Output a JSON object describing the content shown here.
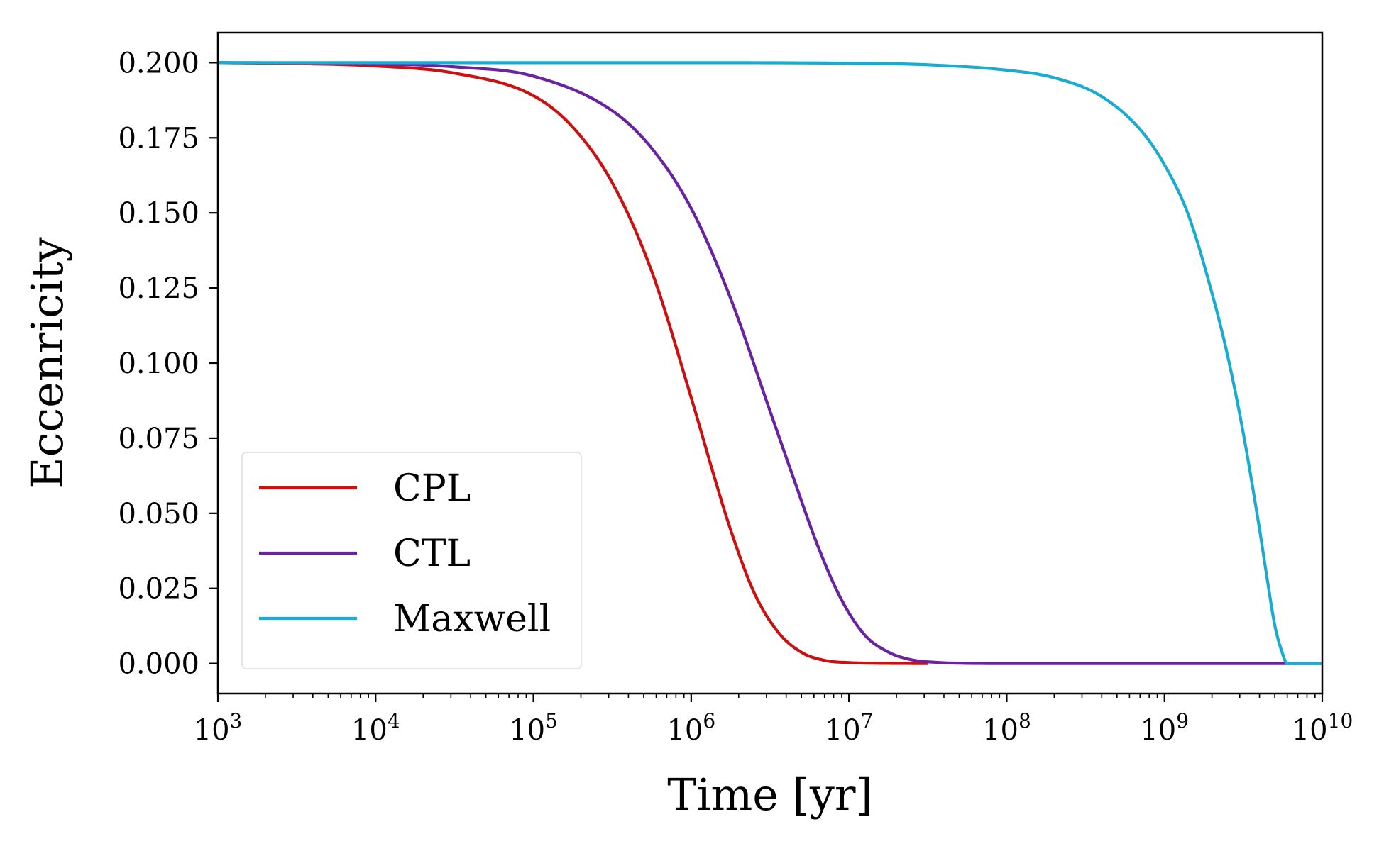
{
  "chart_data": {
    "type": "line",
    "title": "",
    "xlabel": "Time [yr]",
    "ylabel": "Eccenricity",
    "xscale": "log",
    "xlim": [
      1000,
      10000000000
    ],
    "ylim": [
      -0.01,
      0.21
    ],
    "x_ticks": [
      {
        "value": 1000,
        "base": "10",
        "exp": "3"
      },
      {
        "value": 10000,
        "base": "10",
        "exp": "4"
      },
      {
        "value": 100000,
        "base": "10",
        "exp": "5"
      },
      {
        "value": 1000000,
        "base": "10",
        "exp": "6"
      },
      {
        "value": 10000000,
        "base": "10",
        "exp": "7"
      },
      {
        "value": 100000000,
        "base": "10",
        "exp": "8"
      },
      {
        "value": 1000000000,
        "base": "10",
        "exp": "9"
      },
      {
        "value": 10000000000,
        "base": "10",
        "exp": "10"
      }
    ],
    "y_ticks": [
      {
        "value": 0.0,
        "label": "0.000"
      },
      {
        "value": 0.025,
        "label": "0.025"
      },
      {
        "value": 0.05,
        "label": "0.050"
      },
      {
        "value": 0.075,
        "label": "0.075"
      },
      {
        "value": 0.1,
        "label": "0.100"
      },
      {
        "value": 0.125,
        "label": "0.125"
      },
      {
        "value": 0.15,
        "label": "0.150"
      },
      {
        "value": 0.175,
        "label": "0.175"
      },
      {
        "value": 0.2,
        "label": "0.200"
      }
    ],
    "grid": false,
    "legend_position": "lower-left",
    "series": [
      {
        "name": "CPL",
        "color": "#cc1010",
        "x": [
          1000,
          3162,
          10000,
          31623,
          100000,
          177828,
          316228,
          562341,
          1000000,
          1412538,
          1778279,
          2511886,
          3548134,
          5011872,
          7079458,
          10000000,
          14125375,
          19952623,
          31622777
        ],
        "y": [
          0.2,
          0.1997,
          0.1989,
          0.1965,
          0.189,
          0.1785,
          0.16,
          0.1305,
          0.0885,
          0.0615,
          0.0445,
          0.0235,
          0.0105,
          0.0037,
          0.001,
          0.0003,
          0.0001,
          3e-05,
          0.0
        ]
      },
      {
        "name": "CTL",
        "color": "#6a23a0",
        "x": [
          1000,
          3162,
          10000,
          31623,
          100000,
          316228,
          562341,
          1000000,
          1778279,
          3162278,
          4466836,
          6309573,
          8912509,
          12589254,
          17782794,
          25118864,
          35481339,
          50118723,
          100000000,
          10000000000
        ],
        "y": [
          0.2,
          0.1999,
          0.1996,
          0.1986,
          0.1955,
          0.184,
          0.1715,
          0.1515,
          0.1215,
          0.084,
          0.0615,
          0.0395,
          0.0215,
          0.0095,
          0.0038,
          0.0012,
          0.0004,
          0.0001,
          0.0,
          0.0
        ]
      },
      {
        "name": "Maxwell",
        "color": "#1aabd0",
        "x": [
          1000,
          1000000,
          10000000,
          31622777,
          100000000,
          199526231,
          398107171,
          707945784,
          1000000000,
          1412537545,
          1995262315,
          2511886432,
          3162277660,
          3981071706,
          4466835922,
          5011872336,
          5623413252,
          5900000000,
          6100000000,
          10000000000
        ],
        "y": [
          0.2,
          0.2,
          0.1998,
          0.1993,
          0.1975,
          0.195,
          0.1888,
          0.1775,
          0.166,
          0.1495,
          0.1235,
          0.1025,
          0.0765,
          0.0455,
          0.0285,
          0.0125,
          0.003,
          0.0003,
          0.0,
          0.0
        ]
      }
    ]
  }
}
